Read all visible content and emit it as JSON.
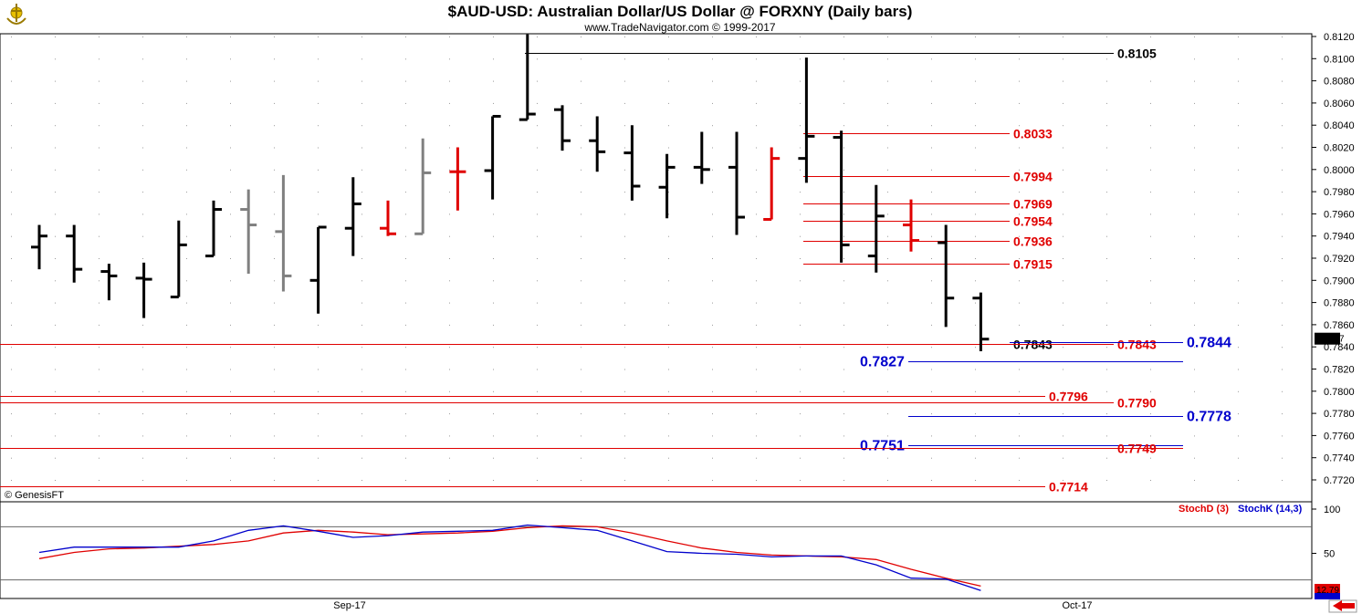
{
  "header": {
    "title": "$AUD-USD:  Australian Dollar/US Dollar @ FORXNY  (Daily bars)",
    "subtitle": "www.TradeNavigator.com © 1999-2017",
    "copyright": "© GenesisFT",
    "logo_icon": "trade-navigator-logo-icon"
  },
  "price_axis": {
    "ticks": [
      "0.8120",
      "0.8100",
      "0.8080",
      "0.8060",
      "0.8040",
      "0.8020",
      "0.8000",
      "0.7980",
      "0.7960",
      "0.7940",
      "0.7920",
      "0.7900",
      "0.7880",
      "0.7860",
      "0.7840",
      "0.7820",
      "0.7800",
      "0.7780",
      "0.7760",
      "0.7740",
      "0.7720"
    ],
    "last_price": "0.7847"
  },
  "time_axis": {
    "labels": [
      "Sep-17",
      "Oct-17"
    ]
  },
  "stoch_panel": {
    "d_label": "StochD (3)",
    "k_label": "StochK (14,3)",
    "ticks": [
      "100",
      "50"
    ],
    "last_d": "12.79",
    "last_k": "8.27"
  },
  "colors": {
    "up": "#000000",
    "down_signal": "#e00000",
    "neutral": "#808080",
    "level_red": "#e00000",
    "level_blue": "#0000cc",
    "stoch_d": "#e00000",
    "stoch_k": "#0000cc"
  },
  "chart_data": {
    "type": "ohlc",
    "title": "$AUD-USD:  Australian Dollar/US Dollar @ FORXNY  (Daily bars)",
    "ylim": [
      0.771,
      0.8125
    ],
    "bars": [
      {
        "o": 0.793,
        "h": 0.795,
        "l": 0.791,
        "c": 0.794,
        "color": "black"
      },
      {
        "o": 0.794,
        "h": 0.795,
        "l": 0.7898,
        "c": 0.791,
        "color": "black"
      },
      {
        "o": 0.7908,
        "h": 0.7915,
        "l": 0.7882,
        "c": 0.7904,
        "color": "black"
      },
      {
        "o": 0.7902,
        "h": 0.7916,
        "l": 0.7866,
        "c": 0.7901,
        "color": "black"
      },
      {
        "o": 0.7885,
        "h": 0.7954,
        "l": 0.7885,
        "c": 0.7932,
        "color": "black"
      },
      {
        "o": 0.7922,
        "h": 0.7972,
        "l": 0.7922,
        "c": 0.7964,
        "color": "black"
      },
      {
        "o": 0.7964,
        "h": 0.7982,
        "l": 0.7906,
        "c": 0.795,
        "color": "gray"
      },
      {
        "o": 0.7944,
        "h": 0.7995,
        "l": 0.789,
        "c": 0.7904,
        "color": "gray"
      },
      {
        "o": 0.79,
        "h": 0.7948,
        "l": 0.787,
        "c": 0.7948,
        "color": "black"
      },
      {
        "o": 0.7947,
        "h": 0.7993,
        "l": 0.7922,
        "c": 0.7969,
        "color": "black"
      },
      {
        "o": 0.7947,
        "h": 0.7972,
        "l": 0.794,
        "c": 0.7942,
        "color": "red"
      },
      {
        "o": 0.7942,
        "h": 0.8028,
        "l": 0.7942,
        "c": 0.7997,
        "color": "gray"
      },
      {
        "o": 0.7998,
        "h": 0.802,
        "l": 0.7963,
        "c": 0.7998,
        "color": "red"
      },
      {
        "o": 0.7999,
        "h": 0.8048,
        "l": 0.7973,
        "c": 0.8048,
        "color": "black"
      },
      {
        "o": 0.8045,
        "h": 0.8122,
        "l": 0.8045,
        "c": 0.805,
        "color": "black"
      },
      {
        "o": 0.8054,
        "h": 0.8058,
        "l": 0.8017,
        "c": 0.8026,
        "color": "black"
      },
      {
        "o": 0.8026,
        "h": 0.8048,
        "l": 0.7998,
        "c": 0.8016,
        "color": "black"
      },
      {
        "o": 0.8015,
        "h": 0.804,
        "l": 0.7972,
        "c": 0.7985,
        "color": "black"
      },
      {
        "o": 0.7984,
        "h": 0.8014,
        "l": 0.7956,
        "c": 0.8002,
        "color": "black"
      },
      {
        "o": 0.8002,
        "h": 0.8034,
        "l": 0.7987,
        "c": 0.8,
        "color": "black"
      },
      {
        "o": 0.8002,
        "h": 0.8034,
        "l": 0.7941,
        "c": 0.7957,
        "color": "black"
      },
      {
        "o": 0.7955,
        "h": 0.802,
        "l": 0.7955,
        "c": 0.801,
        "color": "red"
      },
      {
        "o": 0.801,
        "h": 0.8101,
        "l": 0.7988,
        "c": 0.803,
        "color": "black"
      },
      {
        "o": 0.8029,
        "h": 0.8035,
        "l": 0.7916,
        "c": 0.7932,
        "color": "black"
      },
      {
        "o": 0.7922,
        "h": 0.7986,
        "l": 0.7907,
        "c": 0.7958,
        "color": "black"
      },
      {
        "o": 0.795,
        "h": 0.7973,
        "l": 0.7926,
        "c": 0.7936,
        "color": "red"
      },
      {
        "o": 0.7934,
        "h": 0.795,
        "l": 0.7858,
        "c": 0.7884,
        "color": "black"
      },
      {
        "o": 0.7884,
        "h": 0.7889,
        "l": 0.7836,
        "c": 0.7847,
        "color": "black"
      }
    ],
    "levels": [
      {
        "value": "0.8105",
        "color": "black"
      },
      {
        "value": "0.8033",
        "color": "red"
      },
      {
        "value": "0.7994",
        "color": "red"
      },
      {
        "value": "0.7969",
        "color": "red"
      },
      {
        "value": "0.7954",
        "color": "red"
      },
      {
        "value": "0.7936",
        "color": "red"
      },
      {
        "value": "0.7915",
        "color": "red"
      },
      {
        "value": "0.7843",
        "color": "black"
      },
      {
        "value": "0.7843",
        "color": "red"
      },
      {
        "value": "0.7844",
        "color": "blue"
      },
      {
        "value": "0.7827",
        "color": "blue"
      },
      {
        "value": "0.7796",
        "color": "red"
      },
      {
        "value": "0.7790",
        "color": "red"
      },
      {
        "value": "0.7778",
        "color": "blue"
      },
      {
        "value": "0.7751",
        "color": "blue"
      },
      {
        "value": "0.7749",
        "color": "red"
      },
      {
        "value": "0.7714",
        "color": "red"
      }
    ],
    "stochastic": {
      "d": [
        44,
        51,
        55,
        56,
        58,
        60,
        64,
        73,
        76,
        74,
        71,
        72,
        73,
        75,
        79,
        81,
        80,
        73,
        64,
        56,
        51,
        48,
        47,
        46,
        43,
        32,
        22,
        13
      ],
      "k": [
        51,
        57,
        57,
        57,
        57,
        64,
        76,
        81,
        75,
        68,
        70,
        74,
        75,
        76,
        82,
        79,
        76,
        64,
        52,
        50,
        49,
        46,
        47,
        47,
        37,
        22,
        21,
        8
      ]
    }
  }
}
